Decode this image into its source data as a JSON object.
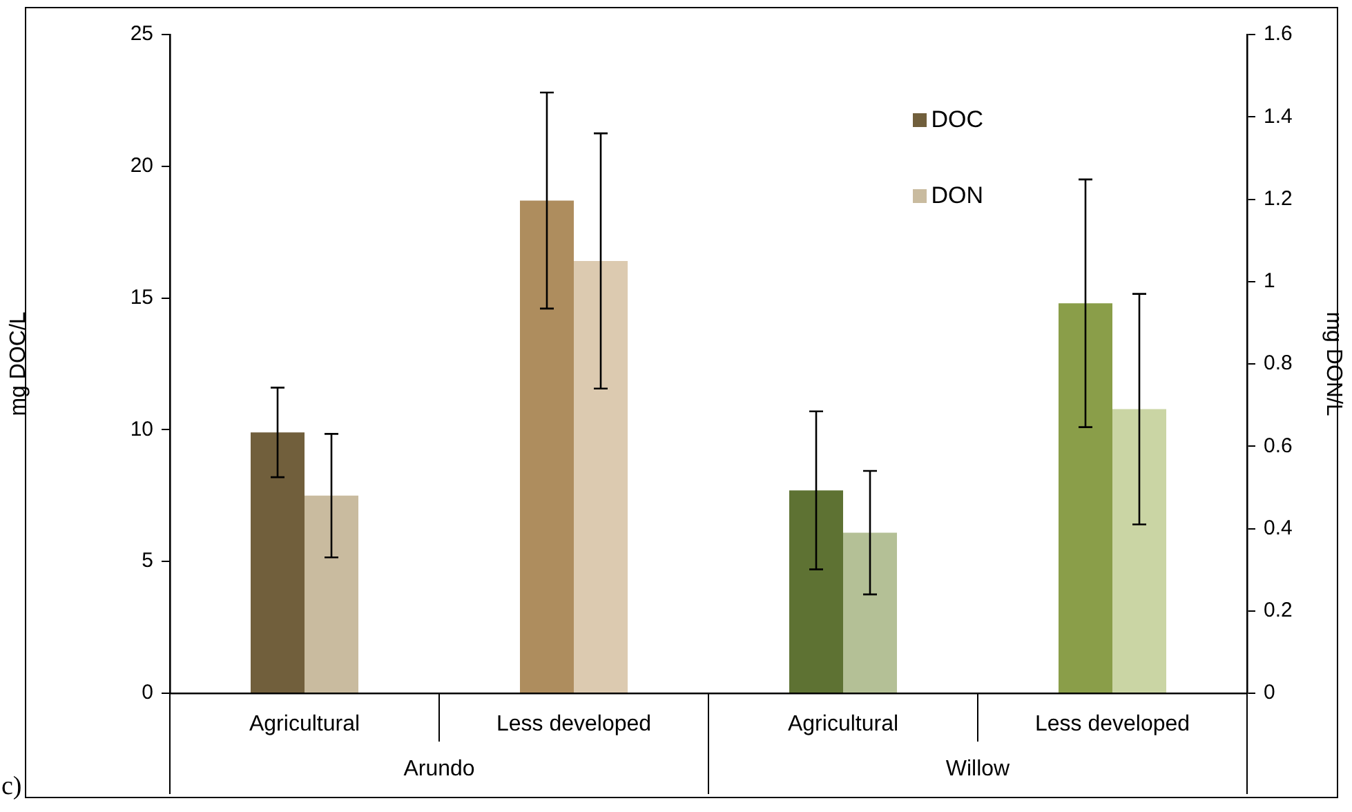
{
  "chart_data": {
    "type": "bar",
    "categories": [
      "Agricultural",
      "Less developed",
      "Agricultural",
      "Less developed"
    ],
    "series": [
      {
        "name": "DOC",
        "values": [
          9.9,
          18.7,
          7.7,
          14.8
        ],
        "errors": [
          1.7,
          4.1,
          3.0,
          4.7
        ],
        "colors": [
          "#715f3c",
          "#ae8d5e",
          "#5e7233",
          "#8a9e49"
        ]
      },
      {
        "name": "DON",
        "axis": "y2",
        "values": [
          0.48,
          1.05,
          0.39,
          0.69
        ],
        "errors": [
          0.15,
          0.31,
          0.15,
          0.28
        ],
        "colors": [
          "#c9bb9f",
          "#dccab0",
          "#b4c096",
          "#cad5a4"
        ]
      }
    ],
    "ylabel": "mg DOC/L",
    "y2label": "mg DON/L",
    "ylim": [
      0,
      25
    ],
    "yticks": [
      0,
      5,
      10,
      15,
      20,
      25
    ],
    "y2lim": [
      0,
      1.6
    ],
    "y2ticks": [
      0,
      0.2,
      0.4,
      0.6,
      0.8,
      1,
      1.2,
      1.4,
      1.6
    ],
    "annotations": [
      "Arundo",
      "Willow",
      "c)"
    ],
    "legend": "top right",
    "grid": false
  }
}
